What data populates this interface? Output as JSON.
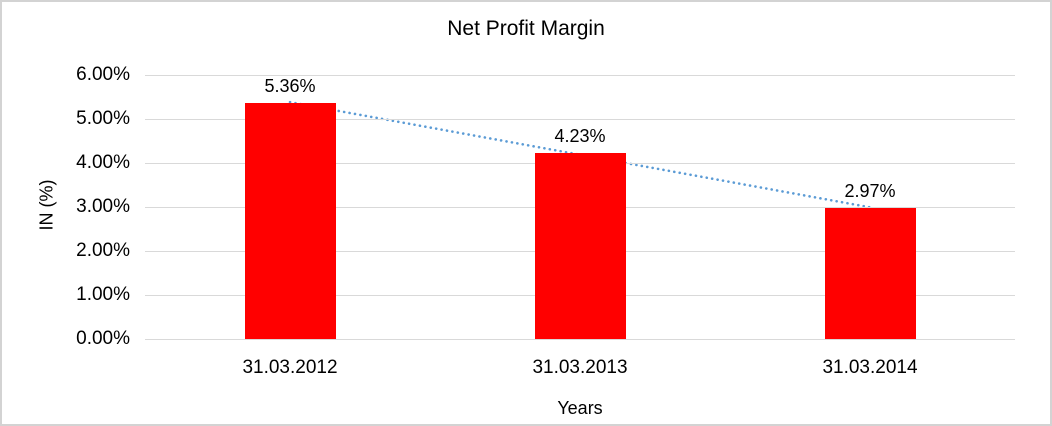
{
  "chart_data": {
    "type": "bar",
    "title": "Net Profit Margin",
    "xlabel": "Years",
    "ylabel": "IN (%)",
    "categories": [
      "31.03.2012",
      "31.03.2013",
      "31.03.2014"
    ],
    "values": [
      5.36,
      4.23,
      2.97
    ],
    "data_labels": [
      "5.36%",
      "4.23%",
      "2.97%"
    ],
    "yticks": [
      "0.00%",
      "1.00%",
      "2.00%",
      "3.00%",
      "4.00%",
      "5.00%",
      "6.00%"
    ],
    "ytick_values": [
      0,
      1,
      2,
      3,
      4,
      5,
      6
    ],
    "ylim": [
      0,
      6
    ],
    "grid": true,
    "legend": "none",
    "bar_color": "#ff0000",
    "trendline": {
      "type": "linear",
      "style": "dotted",
      "color": "#5b9bd5"
    }
  }
}
